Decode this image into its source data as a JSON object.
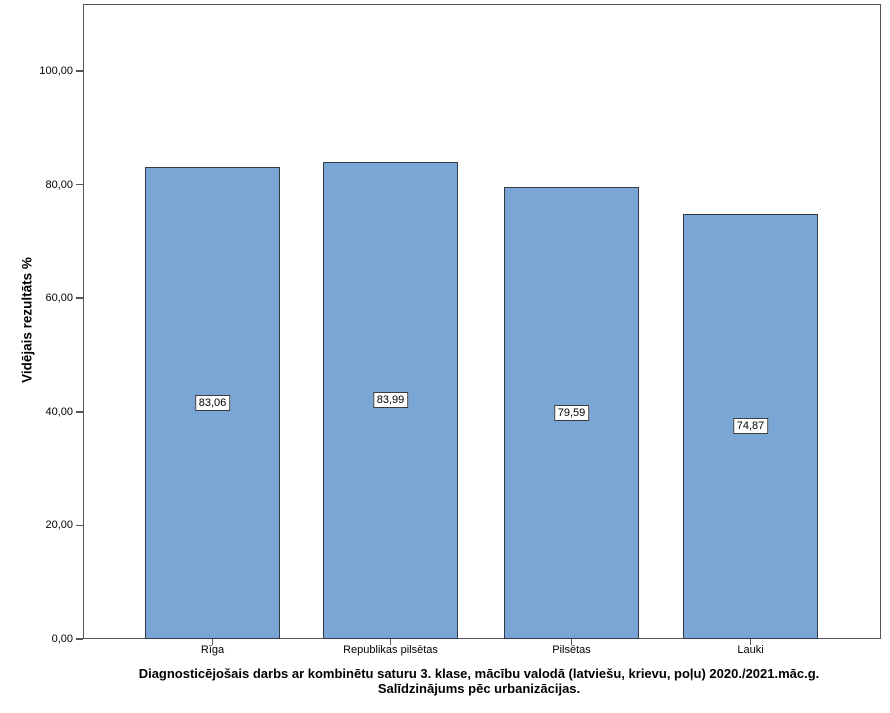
{
  "chart_data": {
    "type": "bar",
    "title": "Diagnosticējošais darbs ar kombinētu saturu 3. klase, mācību valodā (latviešu, krievu, poļu) 2020./2021.māc.g.",
    "subtitle": "Salīdzinājums pēc urbanizācijas.",
    "title_position": "bottom",
    "xlabel": "",
    "ylabel": "Vidējais rezultāts %",
    "categories": [
      "Rīga",
      "Republikas pilsētas",
      "Pilsētas",
      "Lauki"
    ],
    "values": [
      83.06,
      83.99,
      79.59,
      74.87
    ],
    "value_labels": [
      "83,06",
      "83,99",
      "79,59",
      "74,87"
    ],
    "ylim": [
      0,
      112
    ],
    "yticks": {
      "values": [
        0,
        20,
        40,
        60,
        80,
        100
      ],
      "labels": [
        "0,00",
        "20,00",
        "40,00",
        "60,00",
        "80,00",
        "100,00"
      ]
    },
    "grid": false,
    "legend": "none",
    "colors": {
      "background": "#FFFFFF",
      "bar_fill": "#7AA6D6",
      "bar_border": "#333A45",
      "axis": "#555555",
      "text": "#000000",
      "value_label_bg": "#FFFFFF"
    }
  }
}
